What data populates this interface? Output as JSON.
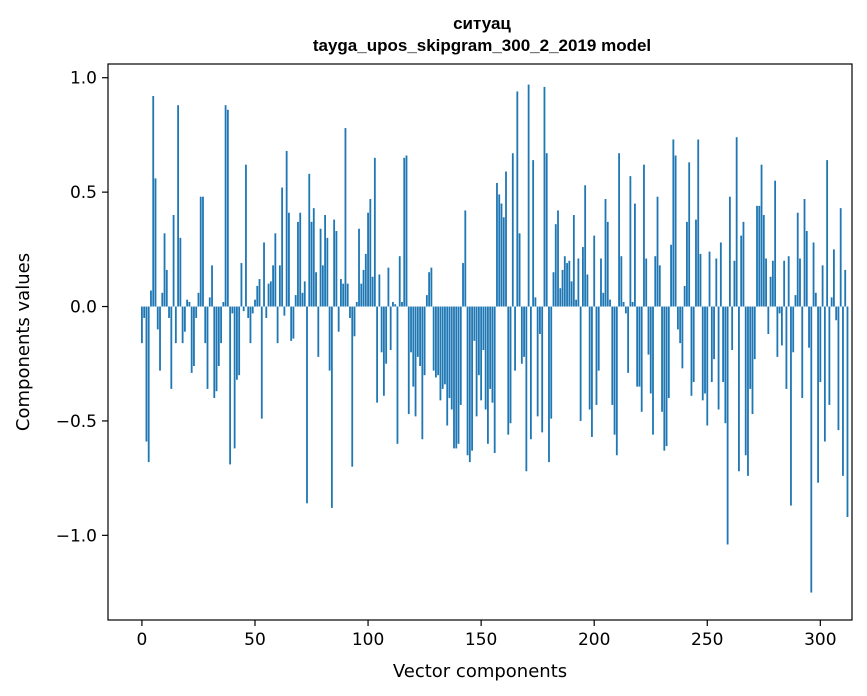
{
  "chart_data": {
    "type": "bar",
    "title_line1": "ситуац",
    "title_line2": "tayga_upos_skipgram_300_2_2019 model",
    "xlabel": "Vector components",
    "ylabel": "Components values",
    "xlim": [
      -15,
      314
    ],
    "ylim": [
      -1.37,
      1.06
    ],
    "xticks": [
      0,
      50,
      100,
      150,
      200,
      250,
      300
    ],
    "xtick_labels": [
      "0",
      "50",
      "100",
      "150",
      "200",
      "250",
      "300"
    ],
    "yticks": [
      1.0,
      0.5,
      0.0,
      -0.5,
      -1.0
    ],
    "ytick_labels": [
      "1.0",
      "0.5",
      "0.0",
      "−0.5",
      "−1.0"
    ],
    "bar_color": "#1f77b4",
    "values": [
      -0.16,
      -0.05,
      -0.59,
      -0.68,
      0.07,
      0.92,
      0.56,
      -0.1,
      -0.28,
      0.06,
      0.32,
      0.16,
      -0.05,
      -0.36,
      0.4,
      -0.16,
      0.88,
      0.3,
      -0.16,
      -0.11,
      0.03,
      0.02,
      -0.29,
      -0.26,
      -0.05,
      0.06,
      0.48,
      0.48,
      -0.16,
      -0.36,
      0.04,
      0.18,
      -0.4,
      -0.37,
      -0.26,
      -0.16,
      0.02,
      0.88,
      0.86,
      -0.69,
      -0.03,
      -0.62,
      -0.32,
      -0.3,
      0.19,
      -0.02,
      0.62,
      -0.05,
      -0.16,
      -0.03,
      0.03,
      0.09,
      0.12,
      -0.49,
      0.28,
      -0.05,
      0.1,
      0.11,
      0.18,
      0.32,
      -0.16,
      0.18,
      0.52,
      -0.04,
      0.68,
      0.41,
      -0.15,
      -0.14,
      0.05,
      0.37,
      0.41,
      0.06,
      0.11,
      -0.86,
      0.58,
      0.37,
      0.43,
      0.15,
      -0.22,
      0.34,
      0.18,
      0.4,
      0.3,
      -0.28,
      -0.88,
      0.38,
      0.33,
      -0.11,
      0.12,
      0.1,
      0.78,
      0.1,
      -0.05,
      -0.7,
      -0.13,
      0.02,
      0.34,
      0.1,
      0.16,
      0.23,
      0.41,
      0.47,
      0.13,
      0.65,
      -0.42,
      0.14,
      -0.2,
      -0.39,
      -0.25,
      0.17,
      -0.19,
      0.02,
      0.01,
      -0.6,
      0.22,
      0.02,
      0.65,
      0.66,
      -0.47,
      -0.2,
      -0.35,
      -0.48,
      -0.22,
      -0.26,
      -0.58,
      -0.3,
      0.05,
      0.15,
      0.17,
      -0.28,
      -0.31,
      -0.3,
      -0.41,
      -0.36,
      -0.34,
      -0.52,
      -0.4,
      -0.45,
      -0.62,
      -0.62,
      -0.6,
      -0.43,
      0.19,
      0.42,
      -0.65,
      -0.68,
      -0.63,
      -0.15,
      -0.48,
      -0.3,
      -0.41,
      -0.19,
      -0.45,
      -0.6,
      -0.36,
      -0.42,
      -0.64,
      0.54,
      0.49,
      0.45,
      0.39,
      0.59,
      -0.56,
      -0.51,
      0.67,
      -0.28,
      0.94,
      0.32,
      -0.25,
      -0.22,
      -0.72,
      0.97,
      -0.58,
      0.64,
      0.04,
      -0.48,
      -0.12,
      -0.55,
      0.96,
      0.67,
      -0.68,
      -0.49,
      0.15,
      0.36,
      0.42,
      0.08,
      0.16,
      0.22,
      0.19,
      0.2,
      0.11,
      0.4,
      0.03,
      0.21,
      -0.5,
      0.26,
      0.53,
      0.14,
      -0.45,
      -0.57,
      0.31,
      -0.43,
      -0.28,
      0.21,
      0.06,
      0.47,
      0.37,
      0.03,
      -0.43,
      -0.56,
      -0.65,
      0.67,
      0.22,
      0.02,
      -0.03,
      -0.29,
      0.57,
      0.02,
      0.45,
      -0.35,
      -0.35,
      -0.46,
      0.62,
      0.21,
      -0.21,
      -0.38,
      -0.56,
      0.22,
      0.48,
      0.18,
      -0.46,
      -0.63,
      -0.61,
      -0.4,
      0.27,
      0.73,
      0.66,
      -0.1,
      -0.16,
      -0.27,
      0.09,
      0.37,
      0.63,
      -0.39,
      -0.33,
      0.38,
      0.73,
      0.23,
      -0.41,
      -0.38,
      -0.52,
      0.24,
      -0.33,
      -0.23,
      0.21,
      -0.45,
      0.28,
      -0.33,
      -0.51,
      -1.04,
      0.48,
      -0.19,
      0.2,
      0.74,
      -0.72,
      0.31,
      0.37,
      -0.65,
      -0.74,
      -0.36,
      -0.47,
      -0.23,
      0.44,
      0.44,
      0.62,
      0.4,
      0.21,
      -0.12,
      0.13,
      0.2,
      0.55,
      -0.22,
      -0.03,
      -0.17,
      0.2,
      -0.36,
      0.22,
      -0.87,
      -0.2,
      0.05,
      0.41,
      0.21,
      -0.4,
      0.47,
      0.33,
      -0.18,
      -1.25,
      0.28,
      0.06,
      -0.77,
      -0.33,
      0.18,
      -0.59,
      0.64,
      -0.43,
      0.04,
      0.25,
      -0.06,
      -0.54,
      0.43,
      -0.74,
      0.16,
      -0.92
    ]
  }
}
